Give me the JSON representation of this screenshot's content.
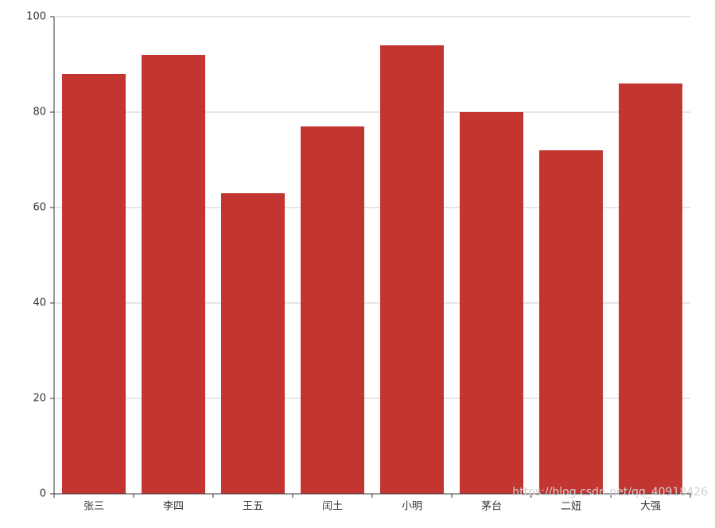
{
  "chart_data": {
    "type": "bar",
    "categories": [
      "张三",
      "李四",
      "王五",
      "闰土",
      "小明",
      "茅台",
      "二妞",
      "大强"
    ],
    "values": [
      88,
      92,
      63,
      77,
      94,
      80,
      72,
      86
    ],
    "color": "#c23531",
    "ylim": [
      0,
      100
    ],
    "yticks": [
      0,
      20,
      40,
      60,
      80,
      100
    ],
    "grid": true,
    "watermark": "https://blog.csdn.net/qq_40918426"
  }
}
